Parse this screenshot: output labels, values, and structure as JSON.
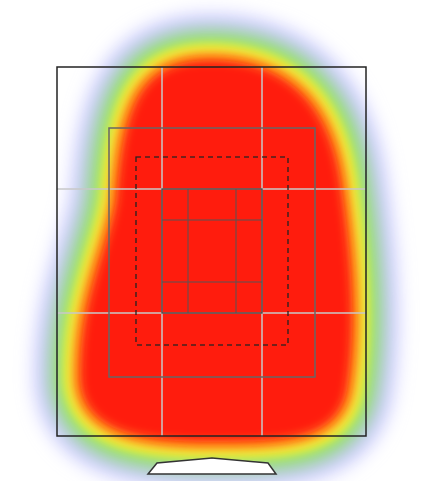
{
  "chart_data": {
    "type": "heatmap"
  }
}
